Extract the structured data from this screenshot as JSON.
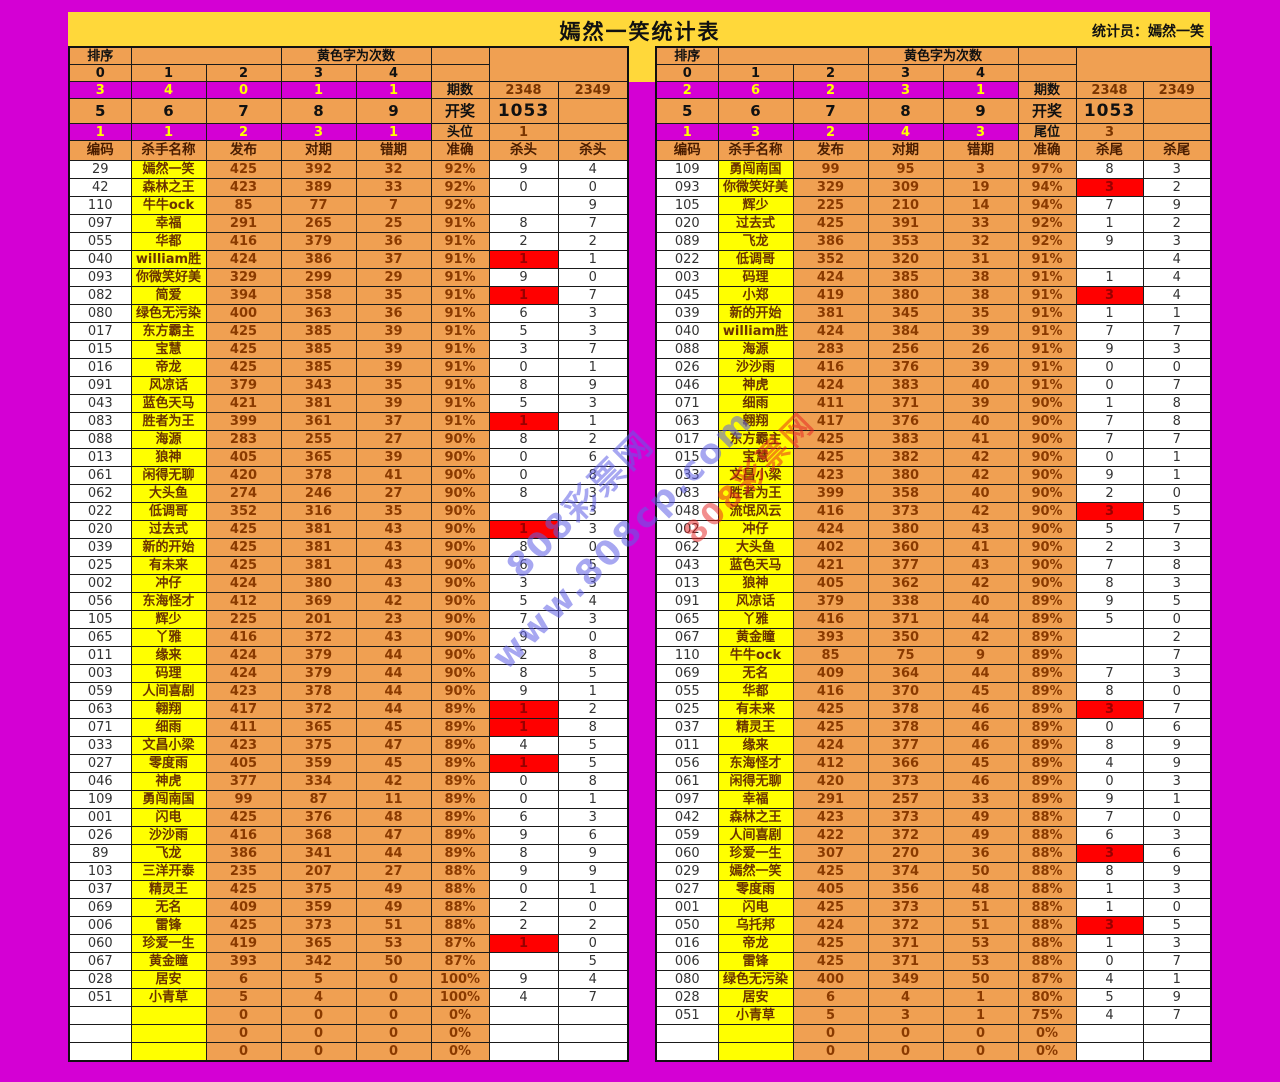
{
  "title": "嫣然一笑统计表",
  "statistician": "统计员：嫣然一笑",
  "shared": {
    "sort_label": "排序",
    "note_label": "黄色字为次数",
    "digits_top": [
      "0",
      "1",
      "2",
      "3",
      "4"
    ],
    "digits_bottom": [
      "5",
      "6",
      "7",
      "8",
      "9"
    ],
    "period_label": "期数",
    "draw_label": "开奖",
    "periods": [
      "2348",
      "2349"
    ],
    "draw_value": "1053"
  },
  "colors": {
    "background_magenta": "#d400d4",
    "gold_strip": "#ffd83a",
    "cell_orange": "#f0a052",
    "name_yellow": "#ffff00",
    "highlight_red": "#ff0000"
  },
  "watermark": {
    "line1": "808彩票网",
    "line2": "www.808cp.com"
  },
  "left_table": {
    "counts_top": [
      "3",
      "4",
      "0",
      "1",
      "1"
    ],
    "counts_bottom": [
      "1",
      "1",
      "2",
      "3",
      "1"
    ],
    "pos_label": "头位",
    "pos_value": "1",
    "columns": [
      "编码",
      "杀手名称",
      "发布",
      "对期",
      "错期",
      "准确",
      "杀头",
      "杀头"
    ],
    "rows": [
      [
        "29",
        "嫣然一笑",
        "425",
        "392",
        "32",
        "92%",
        "9",
        "4",
        0
      ],
      [
        "42",
        "森林之王",
        "423",
        "389",
        "33",
        "92%",
        "0",
        "0",
        0
      ],
      [
        "110",
        "牛牛ock",
        "85",
        "77",
        "7",
        "92%",
        "",
        "9",
        0
      ],
      [
        "097",
        "幸福",
        "291",
        "265",
        "25",
        "91%",
        "8",
        "7",
        0
      ],
      [
        "055",
        "华都",
        "416",
        "379",
        "36",
        "91%",
        "2",
        "2",
        0
      ],
      [
        "040",
        "william胜",
        "424",
        "386",
        "37",
        "91%",
        "1",
        "1",
        1
      ],
      [
        "093",
        "你微笑好美",
        "329",
        "299",
        "29",
        "91%",
        "9",
        "0",
        0
      ],
      [
        "082",
        "简爱",
        "394",
        "358",
        "35",
        "91%",
        "1",
        "7",
        1
      ],
      [
        "080",
        "绿色无污染",
        "400",
        "363",
        "36",
        "91%",
        "6",
        "3",
        0
      ],
      [
        "017",
        "东方霸主",
        "425",
        "385",
        "39",
        "91%",
        "5",
        "3",
        0
      ],
      [
        "015",
        "宝慧",
        "425",
        "385",
        "39",
        "91%",
        "3",
        "7",
        0
      ],
      [
        "016",
        "帝龙",
        "425",
        "385",
        "39",
        "91%",
        "0",
        "1",
        0
      ],
      [
        "091",
        "风凉话",
        "379",
        "343",
        "35",
        "91%",
        "8",
        "9",
        0
      ],
      [
        "043",
        "蓝色天马",
        "421",
        "381",
        "39",
        "91%",
        "5",
        "3",
        0
      ],
      [
        "083",
        "胜者为王",
        "399",
        "361",
        "37",
        "91%",
        "1",
        "1",
        1
      ],
      [
        "088",
        "海源",
        "283",
        "255",
        "27",
        "90%",
        "8",
        "2",
        0
      ],
      [
        "013",
        "狼神",
        "405",
        "365",
        "39",
        "90%",
        "0",
        "6",
        0
      ],
      [
        "061",
        "闲得无聊",
        "420",
        "378",
        "41",
        "90%",
        "0",
        "8",
        0
      ],
      [
        "062",
        "大头鱼",
        "274",
        "246",
        "27",
        "90%",
        "8",
        "3",
        0
      ],
      [
        "022",
        "低调哥",
        "352",
        "316",
        "35",
        "90%",
        "",
        "3",
        0
      ],
      [
        "020",
        "过去式",
        "425",
        "381",
        "43",
        "90%",
        "1",
        "3",
        1
      ],
      [
        "039",
        "新的开始",
        "425",
        "381",
        "43",
        "90%",
        "8",
        "0",
        0
      ],
      [
        "025",
        "有未来",
        "425",
        "381",
        "43",
        "90%",
        "6",
        "5",
        0
      ],
      [
        "002",
        "冲仔",
        "424",
        "380",
        "43",
        "90%",
        "3",
        "3",
        0
      ],
      [
        "056",
        "东海怪才",
        "412",
        "369",
        "42",
        "90%",
        "5",
        "4",
        0
      ],
      [
        "105",
        "辉少",
        "225",
        "201",
        "23",
        "90%",
        "7",
        "3",
        0
      ],
      [
        "065",
        "丫雅",
        "416",
        "372",
        "43",
        "90%",
        "9",
        "0",
        0
      ],
      [
        "011",
        "缘来",
        "424",
        "379",
        "44",
        "90%",
        "2",
        "8",
        0
      ],
      [
        "003",
        "码理",
        "424",
        "379",
        "44",
        "90%",
        "8",
        "5",
        0
      ],
      [
        "059",
        "人间喜剧",
        "423",
        "378",
        "44",
        "90%",
        "9",
        "1",
        0
      ],
      [
        "063",
        "翱翔",
        "417",
        "372",
        "44",
        "89%",
        "1",
        "2",
        1
      ],
      [
        "071",
        "细雨",
        "411",
        "365",
        "45",
        "89%",
        "1",
        "8",
        1
      ],
      [
        "033",
        "文昌小梁",
        "423",
        "375",
        "47",
        "89%",
        "4",
        "5",
        0
      ],
      [
        "027",
        "零度雨",
        "405",
        "359",
        "45",
        "89%",
        "1",
        "5",
        1
      ],
      [
        "046",
        "神虎",
        "377",
        "334",
        "42",
        "89%",
        "0",
        "8",
        0
      ],
      [
        "109",
        "勇闯南国",
        "99",
        "87",
        "11",
        "89%",
        "0",
        "1",
        0
      ],
      [
        "001",
        "闪电",
        "425",
        "376",
        "48",
        "89%",
        "6",
        "3",
        0
      ],
      [
        "026",
        "沙沙雨",
        "416",
        "368",
        "47",
        "89%",
        "9",
        "6",
        0
      ],
      [
        "89",
        "飞龙",
        "386",
        "341",
        "44",
        "89%",
        "8",
        "9",
        0
      ],
      [
        "103",
        "三洋开泰",
        "235",
        "207",
        "27",
        "88%",
        "9",
        "9",
        0
      ],
      [
        "037",
        "精灵王",
        "425",
        "375",
        "49",
        "88%",
        "0",
        "1",
        0
      ],
      [
        "069",
        "无名",
        "409",
        "359",
        "49",
        "88%",
        "2",
        "0",
        0
      ],
      [
        "006",
        "雷锋",
        "425",
        "373",
        "51",
        "88%",
        "2",
        "2",
        0
      ],
      [
        "060",
        "珍爱一生",
        "419",
        "365",
        "53",
        "87%",
        "1",
        "0",
        1
      ],
      [
        "067",
        "黄金瞳",
        "393",
        "342",
        "50",
        "87%",
        "",
        "5",
        0
      ],
      [
        "028",
        "居安",
        "6",
        "5",
        "0",
        "100%",
        "9",
        "4",
        0
      ],
      [
        "051",
        "小青草",
        "5",
        "4",
        "0",
        "100%",
        "4",
        "7",
        0
      ],
      [
        "",
        "",
        "0",
        "0",
        "0",
        "0%",
        "",
        "",
        0
      ],
      [
        "",
        "",
        "0",
        "0",
        "0",
        "0%",
        "",
        "",
        0
      ],
      [
        "",
        "",
        "0",
        "0",
        "0",
        "0%",
        "",
        "",
        0
      ]
    ]
  },
  "right_table": {
    "counts_top": [
      "2",
      "6",
      "2",
      "3",
      "1"
    ],
    "counts_bottom": [
      "1",
      "3",
      "2",
      "4",
      "3"
    ],
    "pos_label": "尾位",
    "pos_value": "3",
    "columns": [
      "编码",
      "杀手名称",
      "发布",
      "对期",
      "错期",
      "准确",
      "杀尾",
      "杀尾"
    ],
    "rows": [
      [
        "109",
        "勇闯南国",
        "99",
        "95",
        "3",
        "97%",
        "8",
        "3",
        0
      ],
      [
        "093",
        "你微笑好美",
        "329",
        "309",
        "19",
        "94%",
        "3",
        "2",
        1
      ],
      [
        "105",
        "辉少",
        "225",
        "210",
        "14",
        "94%",
        "7",
        "9",
        0
      ],
      [
        "020",
        "过去式",
        "425",
        "391",
        "33",
        "92%",
        "1",
        "2",
        0
      ],
      [
        "089",
        "飞龙",
        "386",
        "353",
        "32",
        "92%",
        "9",
        "3",
        0
      ],
      [
        "022",
        "低调哥",
        "352",
        "320",
        "31",
        "91%",
        "",
        "4",
        0
      ],
      [
        "003",
        "码理",
        "424",
        "385",
        "38",
        "91%",
        "1",
        "4",
        0
      ],
      [
        "045",
        "小郑",
        "419",
        "380",
        "38",
        "91%",
        "3",
        "4",
        1
      ],
      [
        "039",
        "新的开始",
        "381",
        "345",
        "35",
        "91%",
        "1",
        "1",
        0
      ],
      [
        "040",
        "william胜",
        "424",
        "384",
        "39",
        "91%",
        "7",
        "7",
        0
      ],
      [
        "088",
        "海源",
        "283",
        "256",
        "26",
        "91%",
        "9",
        "3",
        0
      ],
      [
        "026",
        "沙沙雨",
        "416",
        "376",
        "39",
        "91%",
        "0",
        "0",
        0
      ],
      [
        "046",
        "神虎",
        "424",
        "383",
        "40",
        "91%",
        "0",
        "7",
        0
      ],
      [
        "071",
        "细雨",
        "411",
        "371",
        "39",
        "90%",
        "1",
        "8",
        0
      ],
      [
        "063",
        "翱翔",
        "417",
        "376",
        "40",
        "90%",
        "7",
        "8",
        0
      ],
      [
        "017",
        "东方霸主",
        "425",
        "383",
        "41",
        "90%",
        "7",
        "7",
        0
      ],
      [
        "015",
        "宝慧",
        "425",
        "382",
        "42",
        "90%",
        "0",
        "1",
        0
      ],
      [
        "033",
        "文昌小梁",
        "423",
        "380",
        "42",
        "90%",
        "9",
        "1",
        0
      ],
      [
        "083",
        "胜者为王",
        "399",
        "358",
        "40",
        "90%",
        "2",
        "0",
        0
      ],
      [
        "048",
        "流氓风云",
        "416",
        "373",
        "42",
        "90%",
        "3",
        "5",
        1
      ],
      [
        "002",
        "冲仔",
        "424",
        "380",
        "43",
        "90%",
        "5",
        "7",
        0
      ],
      [
        "062",
        "大头鱼",
        "402",
        "360",
        "41",
        "90%",
        "2",
        "3",
        0
      ],
      [
        "043",
        "蓝色天马",
        "421",
        "377",
        "43",
        "90%",
        "7",
        "8",
        0
      ],
      [
        "013",
        "狼神",
        "405",
        "362",
        "42",
        "90%",
        "8",
        "3",
        0
      ],
      [
        "091",
        "风凉话",
        "379",
        "338",
        "40",
        "89%",
        "9",
        "5",
        0
      ],
      [
        "065",
        "丫雅",
        "416",
        "371",
        "44",
        "89%",
        "5",
        "0",
        0
      ],
      [
        "067",
        "黄金瞳",
        "393",
        "350",
        "42",
        "89%",
        "",
        "2",
        0
      ],
      [
        "110",
        "牛牛ock",
        "85",
        "75",
        "9",
        "89%",
        "",
        "7",
        0
      ],
      [
        "069",
        "无名",
        "409",
        "364",
        "44",
        "89%",
        "7",
        "3",
        0
      ],
      [
        "055",
        "华都",
        "416",
        "370",
        "45",
        "89%",
        "8",
        "0",
        0
      ],
      [
        "025",
        "有未来",
        "425",
        "378",
        "46",
        "89%",
        "3",
        "7",
        1
      ],
      [
        "037",
        "精灵王",
        "425",
        "378",
        "46",
        "89%",
        "0",
        "6",
        0
      ],
      [
        "011",
        "缘来",
        "424",
        "377",
        "46",
        "89%",
        "8",
        "9",
        0
      ],
      [
        "056",
        "东海怪才",
        "412",
        "366",
        "45",
        "89%",
        "4",
        "9",
        0
      ],
      [
        "061",
        "闲得无聊",
        "420",
        "373",
        "46",
        "89%",
        "0",
        "3",
        0
      ],
      [
        "097",
        "幸福",
        "291",
        "257",
        "33",
        "89%",
        "9",
        "1",
        0
      ],
      [
        "042",
        "森林之王",
        "423",
        "373",
        "49",
        "88%",
        "7",
        "0",
        0
      ],
      [
        "059",
        "人间喜剧",
        "422",
        "372",
        "49",
        "88%",
        "6",
        "3",
        0
      ],
      [
        "060",
        "珍爱一生",
        "307",
        "270",
        "36",
        "88%",
        "3",
        "6",
        1
      ],
      [
        "029",
        "嫣然一笑",
        "425",
        "374",
        "50",
        "88%",
        "8",
        "9",
        0
      ],
      [
        "027",
        "零度雨",
        "405",
        "356",
        "48",
        "88%",
        "1",
        "3",
        0
      ],
      [
        "001",
        "闪电",
        "425",
        "373",
        "51",
        "88%",
        "1",
        "0",
        0
      ],
      [
        "050",
        "乌托邦",
        "424",
        "372",
        "51",
        "88%",
        "3",
        "5",
        1
      ],
      [
        "016",
        "帝龙",
        "425",
        "371",
        "53",
        "88%",
        "1",
        "3",
        0
      ],
      [
        "006",
        "雷锋",
        "425",
        "371",
        "53",
        "88%",
        "0",
        "7",
        0
      ],
      [
        "080",
        "绿色无污染",
        "400",
        "349",
        "50",
        "87%",
        "4",
        "1",
        0
      ],
      [
        "028",
        "居安",
        "6",
        "4",
        "1",
        "80%",
        "5",
        "9",
        0
      ],
      [
        "051",
        "小青草",
        "5",
        "3",
        "1",
        "75%",
        "4",
        "7",
        0
      ],
      [
        "",
        "",
        "0",
        "0",
        "0",
        "0%",
        "",
        "",
        0
      ],
      [
        "",
        "",
        "0",
        "0",
        "0",
        "0%",
        "",
        "",
        0
      ]
    ]
  }
}
